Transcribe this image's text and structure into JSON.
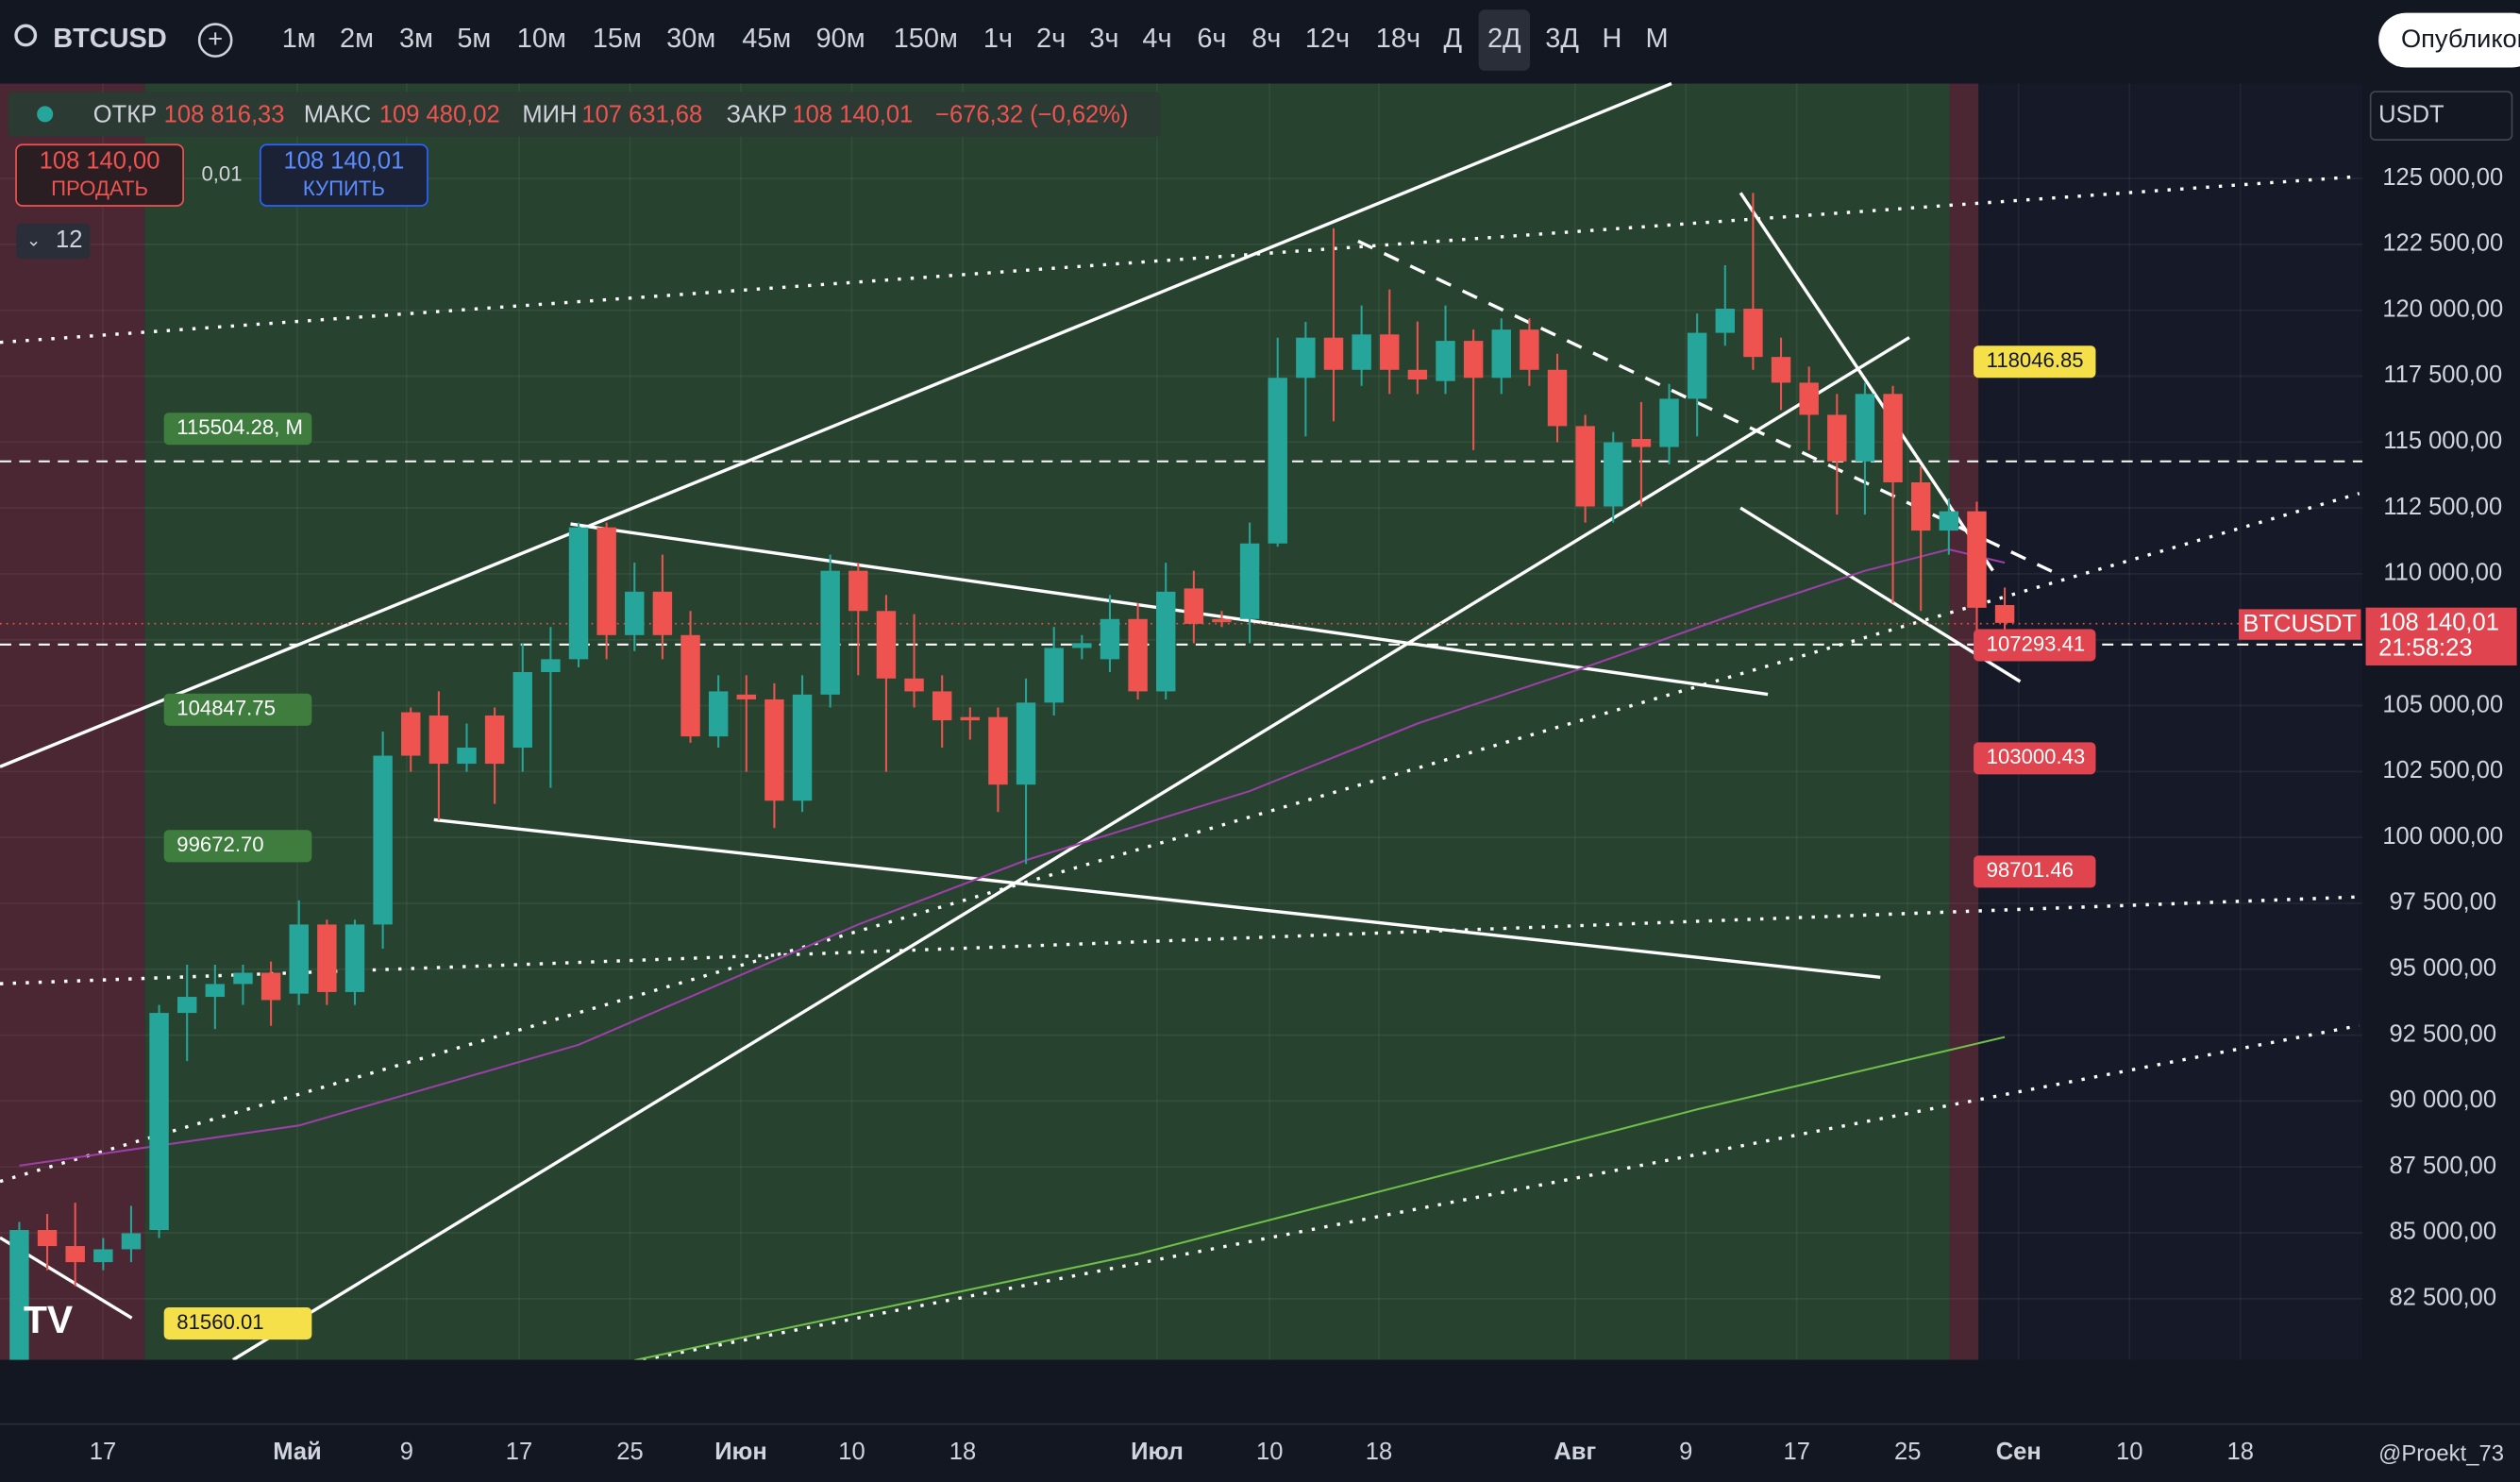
{
  "header": {
    "symbol": "BTCUSD",
    "timeframes": [
      "1м",
      "2м",
      "3м",
      "5м",
      "10м",
      "15м",
      "30м",
      "45м",
      "90м",
      "150м",
      "1ч",
      "2ч",
      "3ч",
      "4ч",
      "6ч",
      "8ч",
      "12ч",
      "18ч",
      "Д",
      "2Д",
      "3Д",
      "Н",
      "М"
    ],
    "publish": "Опубликовать"
  },
  "legend": {
    "open_label": "ОТКР",
    "open": "108 816,33",
    "high_label": "МАКС",
    "high": "109 480,02",
    "low_label": "МИН",
    "low": "107 631,68",
    "close_label": "ЗАКР",
    "close": "108 140,01",
    "change": "−676,32 (−0,62%)"
  },
  "trade": {
    "sell_price": "108 140,00",
    "sell": "ПРОДАТЬ",
    "spread": "0,01",
    "buy_price": "108 140,01",
    "buy": "КУПИТЬ",
    "indicators": "12"
  },
  "currency": "USDT",
  "price_tag": {
    "symbol": "BTCUSDT",
    "price": "108 140,01",
    "timer": "21:58:23"
  },
  "watermark": "@Proekt_73",
  "chart_data": {
    "type": "candlestick",
    "up_color": "#26a69a",
    "down_color": "#ef5350",
    "open": [
      80165,
      85106,
      84496,
      83886,
      84374,
      85106,
      93341,
      93951,
      94439,
      94866,
      94073,
      96696,
      94134,
      96696,
      104748,
      104626,
      102796,
      104626,
      103406,
      106273,
      106761,
      111763,
      107676,
      109323,
      107676,
      103833,
      105419,
      105236,
      101393,
      105419,
      110116,
      108591,
      106029,
      105541,
      104565,
      104565,
      102003,
      105114,
      107188,
      106761,
      108286,
      105541,
      109445,
      108286,
      108286,
      111153,
      117436,
      118961,
      117741,
      119083,
      117741,
      117314,
      118839,
      117436,
      119266,
      117741,
      115606,
      112556,
      115118,
      114813,
      116643,
      119144,
      120059,
      118229,
      117253,
      116033,
      114264,
      116826,
      113471,
      111641,
      112373,
      108816.33
    ],
    "high": [
      85411,
      85716,
      86143,
      84801,
      86021,
      93646,
      95171,
      95171,
      95171,
      95293,
      97611,
      96879,
      96879,
      104016,
      104931,
      105541,
      104321,
      104931,
      107371,
      107981,
      111946,
      111946,
      110421,
      110726,
      108591,
      106151,
      106151,
      105846,
      106151,
      110726,
      110421,
      109201,
      108469,
      106151,
      104931,
      104931,
      106029,
      107981,
      107676,
      109201,
      108896,
      110421,
      110116,
      108591,
      111946,
      118961,
      119561,
      123109,
      120181,
      120791,
      119571,
      120181,
      119266,
      119693,
      119693,
      118351,
      116033,
      115377,
      116521,
      117207,
      119876,
      121706,
      124451,
      118961,
      117863,
      116826,
      117253,
      117131,
      114081,
      112861,
      112739,
      109480.02
    ],
    "low": [
      80165,
      83581,
      82971,
      83581,
      83886,
      84801,
      91511,
      92731,
      93646,
      92853,
      93646,
      93646,
      93646,
      95781,
      102491,
      100661,
      102491,
      101271,
      102491,
      101881,
      106456,
      106761,
      107066,
      106761,
      103589,
      103406,
      102491,
      100356,
      100966,
      104931,
      106151,
      102491,
      104931,
      103406,
      103711,
      100966,
      98990,
      104626,
      106761,
      106273,
      105236,
      105236,
      107371,
      107981,
      107371,
      111031,
      115216,
      115789,
      117131,
      116826,
      116826,
      116826,
      114691,
      116826,
      117131,
      114991,
      111946,
      111946,
      112556,
      114157,
      115216,
      118656,
      117741,
      116216,
      114691,
      112251,
      112251,
      108896,
      108591,
      110726,
      107066,
      107631.68
    ],
    "close": [
      85106,
      84496,
      83886,
      84374,
      84984,
      93341,
      93951,
      94439,
      94866,
      93829,
      96696,
      94134,
      96696,
      103101,
      103101,
      102796,
      103406,
      102796,
      106273,
      106761,
      111763,
      107676,
      109323,
      107676,
      103833,
      105541,
      105236,
      101393,
      105419,
      110116,
      108591,
      106029,
      105541,
      104443,
      104443,
      102003,
      105114,
      107188,
      107371,
      108286,
      105541,
      109323,
      108103,
      108164,
      111153,
      117436,
      118961,
      117741,
      119083,
      117741,
      117375,
      118839,
      117436,
      119266,
      117741,
      115606,
      112556,
      114991,
      114813,
      116643,
      119144,
      120059,
      118229,
      117253,
      116033,
      114264,
      116826,
      113471,
      111641,
      112373,
      108713,
      108140.01
    ],
    "lines": [
      {
        "color": "#9c3fa8",
        "x": [
          0,
          10,
          20,
          30,
          36,
          44,
          50,
          56,
          62,
          66,
          69,
          71
        ],
        "values": [
          87546,
          89071,
          92132,
          96696,
          99136,
          101758,
          104321,
          106456,
          108713,
          110116,
          110928,
          110421
        ]
      },
      {
        "color": "#6fbf4a",
        "x": [
          22,
          40,
          50,
          60,
          71
        ],
        "values": [
          80165,
          84191,
          86936,
          89681,
          92426
        ]
      }
    ],
    "ylim": [
      80180,
      128600
    ],
    "yticks": [
      {
        "value": 125000,
        "label": "125 000,00"
      },
      {
        "value": 122500,
        "label": "122 500,00"
      },
      {
        "value": 120000,
        "label": "120 000,00"
      },
      {
        "value": 117500,
        "label": "117 500,00"
      },
      {
        "value": 115000,
        "label": "115 000,00"
      },
      {
        "value": 112500,
        "label": "112 500,00"
      },
      {
        "value": 110000,
        "label": "110 000,00"
      },
      {
        "value": 107500,
        "label": "107 500,00"
      },
      {
        "value": 105000,
        "label": "105 000,00"
      },
      {
        "value": 102500,
        "label": "102 500,00"
      },
      {
        "value": 100000,
        "label": "100 000,00"
      },
      {
        "value": 97500,
        "label": "97 500,00"
      },
      {
        "value": 95000,
        "label": "95 000,00"
      },
      {
        "value": 92500,
        "label": "92 500,00"
      },
      {
        "value": 90000,
        "label": "90 000,00"
      },
      {
        "value": 87500,
        "label": "87 500,00"
      },
      {
        "value": 85000,
        "label": "85 000,00"
      },
      {
        "value": 82500,
        "label": "82 500,00"
      }
    ],
    "x_labels": [
      "17",
      "Май",
      "9",
      "17",
      "25",
      "Июн",
      "10",
      "18",
      "Июл",
      "10",
      "18",
      "Авг",
      "9",
      "17",
      "25",
      "Сен",
      "10",
      "18"
    ],
    "left_labels": [
      {
        "value": 115504.28,
        "label": "115504.28, M",
        "color": "#3e7d3e"
      },
      {
        "value": 104847.75,
        "label": "104847.75",
        "color": "#3e7d3e"
      },
      {
        "value": 99672.7,
        "label": "99672.70",
        "color": "#3e7d3e"
      },
      {
        "value": 81560.01,
        "label": "81560.01",
        "color": "#f5e04a"
      }
    ],
    "right_labels": [
      {
        "value": 118046.85,
        "label": "118046.85",
        "color": "#f5e04a"
      },
      {
        "value": 107293.41,
        "label": "107293.41",
        "color": "#e0454f"
      },
      {
        "value": 103000.43,
        "label": "103000.43",
        "color": "#e0454f"
      },
      {
        "value": 98701.46,
        "label": "98701.46",
        "color": "#e0454f"
      }
    ]
  }
}
